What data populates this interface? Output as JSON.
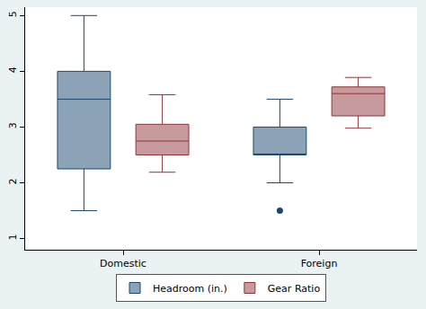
{
  "chart_data": {
    "type": "box",
    "categories": [
      "Domestic",
      "Foreign"
    ],
    "series": [
      {
        "name": "Headroom (in.)",
        "color": "#1a476f",
        "lower_whisker": [
          1.5,
          2.0
        ],
        "q1": [
          2.25,
          2.5
        ],
        "median": [
          3.5,
          2.5
        ],
        "q3": [
          4.0,
          3.0
        ],
        "upper_whisker": [
          5.0,
          3.5
        ],
        "outliers": [
          [],
          [
            1.5
          ]
        ]
      },
      {
        "name": "Gear Ratio",
        "color": "#90353b",
        "lower_whisker": [
          2.19,
          2.98
        ],
        "q1": [
          2.5,
          3.2
        ],
        "median": [
          2.75,
          3.6
        ],
        "q3": [
          3.05,
          3.72
        ],
        "upper_whisker": [
          3.58,
          3.89
        ],
        "outliers": [
          [],
          []
        ]
      }
    ],
    "ylim": [
      0.8,
      5.15
    ],
    "yticks": [
      1,
      2,
      3,
      4,
      5
    ],
    "grid": false,
    "legend": "bottom"
  }
}
